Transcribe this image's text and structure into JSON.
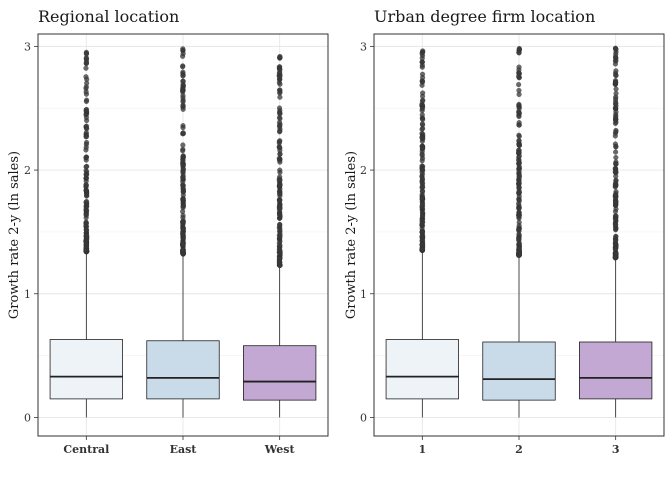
{
  "chart_data": [
    {
      "type": "box",
      "title": "Regional location",
      "ylabel": "Growth rate 2-y (ln sales)",
      "xlabel": "",
      "ylim": [
        -0.15,
        3.1
      ],
      "yticks": [
        0,
        1,
        2,
        3
      ],
      "grid": true,
      "categories": [
        "Central",
        "East",
        "West"
      ],
      "boxes": [
        {
          "category": "Central",
          "whisker_low": 0.0,
          "q1": 0.15,
          "median": 0.33,
          "q3": 0.63,
          "whisker_high": 1.34,
          "outlier_range": [
            1.34,
            2.99
          ],
          "fill": "#eef3f8"
        },
        {
          "category": "East",
          "whisker_low": 0.0,
          "q1": 0.15,
          "median": 0.32,
          "q3": 0.62,
          "whisker_high": 1.32,
          "outlier_range": [
            1.32,
            2.98
          ],
          "fill": "#c9dae9"
        },
        {
          "category": "West",
          "whisker_low": 0.0,
          "q1": 0.14,
          "median": 0.29,
          "q3": 0.58,
          "whisker_high": 1.23,
          "outlier_range": [
            1.23,
            2.93
          ],
          "fill": "#c2a8d3"
        }
      ]
    },
    {
      "type": "box",
      "title": "Urban degree firm location",
      "ylabel": "Growth rate 2-y (ln sales)",
      "xlabel": "",
      "ylim": [
        -0.15,
        3.1
      ],
      "yticks": [
        0,
        1,
        2,
        3
      ],
      "grid": true,
      "categories": [
        "1",
        "2",
        "3"
      ],
      "boxes": [
        {
          "category": "1",
          "whisker_low": 0.0,
          "q1": 0.15,
          "median": 0.33,
          "q3": 0.63,
          "whisker_high": 1.35,
          "outlier_range": [
            1.35,
            2.97
          ],
          "fill": "#eef3f8"
        },
        {
          "category": "2",
          "whisker_low": 0.0,
          "q1": 0.14,
          "median": 0.31,
          "q3": 0.61,
          "whisker_high": 1.31,
          "outlier_range": [
            1.31,
            2.99
          ],
          "fill": "#c9dae9"
        },
        {
          "category": "3",
          "whisker_low": 0.0,
          "q1": 0.15,
          "median": 0.32,
          "q3": 0.61,
          "whisker_high": 1.29,
          "outlier_range": [
            1.29,
            2.99
          ],
          "fill": "#c2a8d3"
        }
      ]
    }
  ]
}
